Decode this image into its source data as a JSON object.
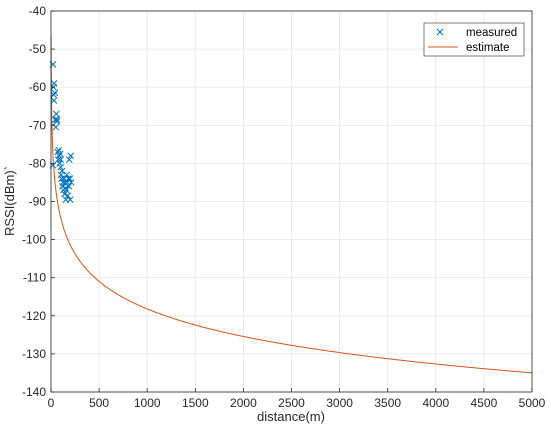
{
  "chart_data": {
    "type": "scatter",
    "title": "",
    "xlabel": "distance(m)",
    "ylabel": "RSSI(dBm)`",
    "xlim": [
      0,
      5000
    ],
    "ylim": [
      -140,
      -40
    ],
    "xticks": [
      0,
      500,
      1000,
      1500,
      2000,
      2500,
      3000,
      3500,
      4000,
      4500,
      5000
    ],
    "yticks": [
      -40,
      -50,
      -60,
      -70,
      -80,
      -90,
      -100,
      -110,
      -120,
      -130,
      -140
    ],
    "grid": true,
    "legend_position": "top-right",
    "series": [
      {
        "name": "measured",
        "kind": "scatter",
        "marker": "x",
        "color": "#0072BD",
        "points": [
          [
            20,
            -54
          ],
          [
            25,
            -60
          ],
          [
            28,
            -62
          ],
          [
            30,
            -63.5
          ],
          [
            32,
            -59
          ],
          [
            40,
            -61.5
          ],
          [
            45,
            -68.5
          ],
          [
            50,
            -70.5
          ],
          [
            55,
            -67
          ],
          [
            60,
            -69
          ],
          [
            62,
            -68.5
          ],
          [
            20,
            -80.5
          ],
          [
            70,
            -77
          ],
          [
            75,
            -79
          ],
          [
            80,
            -76.5
          ],
          [
            85,
            -78
          ],
          [
            90,
            -80
          ],
          [
            95,
            -77.5
          ],
          [
            100,
            -79
          ],
          [
            100,
            -81
          ],
          [
            105,
            -83
          ],
          [
            110,
            -84
          ],
          [
            115,
            -82
          ],
          [
            120,
            -86
          ],
          [
            125,
            -85
          ],
          [
            130,
            -87
          ],
          [
            135,
            -84
          ],
          [
            140,
            -88
          ],
          [
            145,
            -85
          ],
          [
            150,
            -86.5
          ],
          [
            155,
            -89.5
          ],
          [
            160,
            -87
          ],
          [
            165,
            -83
          ],
          [
            170,
            -85
          ],
          [
            175,
            -88.5
          ],
          [
            180,
            -84
          ],
          [
            185,
            -86
          ],
          [
            190,
            -79
          ],
          [
            195,
            -84
          ],
          [
            200,
            -89.5
          ],
          [
            205,
            -78
          ],
          [
            210,
            -85
          ]
        ]
      },
      {
        "name": "estimate",
        "kind": "line",
        "color": "#D95319",
        "model": {
          "a": -46.2,
          "b": -24.0
        }
      }
    ]
  }
}
